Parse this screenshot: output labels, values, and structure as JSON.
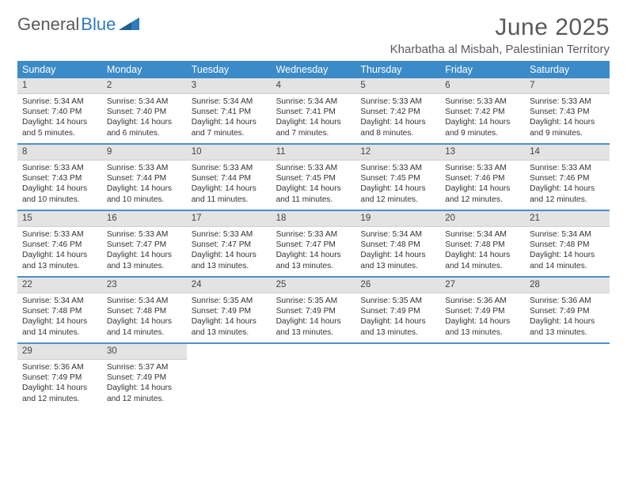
{
  "brand": {
    "part1": "General",
    "part2": "Blue"
  },
  "title": "June 2025",
  "location": "Kharbatha al Misbah, Palestinian Territory",
  "colors": {
    "header_bg": "#3b8bc9",
    "header_text": "#ffffff",
    "daynum_bg": "#e3e3e3",
    "separator": "#2f7bbf",
    "brand_blue": "#2f7bbf",
    "body_text": "#333333",
    "title_text": "#5a5a5a"
  },
  "typography": {
    "month_title_size": 30,
    "location_size": 15,
    "dow_size": 12.5,
    "daynum_size": 11.5,
    "body_size": 10.2
  },
  "layout": {
    "columns": 7,
    "weeks": 5
  },
  "days_of_week": [
    "Sunday",
    "Monday",
    "Tuesday",
    "Wednesday",
    "Thursday",
    "Friday",
    "Saturday"
  ],
  "days": [
    {
      "n": 1,
      "sunrise": "5:34 AM",
      "sunset": "7:40 PM",
      "daylight": "14 hours and 5 minutes."
    },
    {
      "n": 2,
      "sunrise": "5:34 AM",
      "sunset": "7:40 PM",
      "daylight": "14 hours and 6 minutes."
    },
    {
      "n": 3,
      "sunrise": "5:34 AM",
      "sunset": "7:41 PM",
      "daylight": "14 hours and 7 minutes."
    },
    {
      "n": 4,
      "sunrise": "5:34 AM",
      "sunset": "7:41 PM",
      "daylight": "14 hours and 7 minutes."
    },
    {
      "n": 5,
      "sunrise": "5:33 AM",
      "sunset": "7:42 PM",
      "daylight": "14 hours and 8 minutes."
    },
    {
      "n": 6,
      "sunrise": "5:33 AM",
      "sunset": "7:42 PM",
      "daylight": "14 hours and 9 minutes."
    },
    {
      "n": 7,
      "sunrise": "5:33 AM",
      "sunset": "7:43 PM",
      "daylight": "14 hours and 9 minutes."
    },
    {
      "n": 8,
      "sunrise": "5:33 AM",
      "sunset": "7:43 PM",
      "daylight": "14 hours and 10 minutes."
    },
    {
      "n": 9,
      "sunrise": "5:33 AM",
      "sunset": "7:44 PM",
      "daylight": "14 hours and 10 minutes."
    },
    {
      "n": 10,
      "sunrise": "5:33 AM",
      "sunset": "7:44 PM",
      "daylight": "14 hours and 11 minutes."
    },
    {
      "n": 11,
      "sunrise": "5:33 AM",
      "sunset": "7:45 PM",
      "daylight": "14 hours and 11 minutes."
    },
    {
      "n": 12,
      "sunrise": "5:33 AM",
      "sunset": "7:45 PM",
      "daylight": "14 hours and 12 minutes."
    },
    {
      "n": 13,
      "sunrise": "5:33 AM",
      "sunset": "7:46 PM",
      "daylight": "14 hours and 12 minutes."
    },
    {
      "n": 14,
      "sunrise": "5:33 AM",
      "sunset": "7:46 PM",
      "daylight": "14 hours and 12 minutes."
    },
    {
      "n": 15,
      "sunrise": "5:33 AM",
      "sunset": "7:46 PM",
      "daylight": "14 hours and 13 minutes."
    },
    {
      "n": 16,
      "sunrise": "5:33 AM",
      "sunset": "7:47 PM",
      "daylight": "14 hours and 13 minutes."
    },
    {
      "n": 17,
      "sunrise": "5:33 AM",
      "sunset": "7:47 PM",
      "daylight": "14 hours and 13 minutes."
    },
    {
      "n": 18,
      "sunrise": "5:33 AM",
      "sunset": "7:47 PM",
      "daylight": "14 hours and 13 minutes."
    },
    {
      "n": 19,
      "sunrise": "5:34 AM",
      "sunset": "7:48 PM",
      "daylight": "14 hours and 13 minutes."
    },
    {
      "n": 20,
      "sunrise": "5:34 AM",
      "sunset": "7:48 PM",
      "daylight": "14 hours and 14 minutes."
    },
    {
      "n": 21,
      "sunrise": "5:34 AM",
      "sunset": "7:48 PM",
      "daylight": "14 hours and 14 minutes."
    },
    {
      "n": 22,
      "sunrise": "5:34 AM",
      "sunset": "7:48 PM",
      "daylight": "14 hours and 14 minutes."
    },
    {
      "n": 23,
      "sunrise": "5:34 AM",
      "sunset": "7:48 PM",
      "daylight": "14 hours and 14 minutes."
    },
    {
      "n": 24,
      "sunrise": "5:35 AM",
      "sunset": "7:49 PM",
      "daylight": "14 hours and 13 minutes."
    },
    {
      "n": 25,
      "sunrise": "5:35 AM",
      "sunset": "7:49 PM",
      "daylight": "14 hours and 13 minutes."
    },
    {
      "n": 26,
      "sunrise": "5:35 AM",
      "sunset": "7:49 PM",
      "daylight": "14 hours and 13 minutes."
    },
    {
      "n": 27,
      "sunrise": "5:36 AM",
      "sunset": "7:49 PM",
      "daylight": "14 hours and 13 minutes."
    },
    {
      "n": 28,
      "sunrise": "5:36 AM",
      "sunset": "7:49 PM",
      "daylight": "14 hours and 13 minutes."
    },
    {
      "n": 29,
      "sunrise": "5:36 AM",
      "sunset": "7:49 PM",
      "daylight": "14 hours and 12 minutes."
    },
    {
      "n": 30,
      "sunrise": "5:37 AM",
      "sunset": "7:49 PM",
      "daylight": "14 hours and 12 minutes."
    }
  ],
  "labels": {
    "sunrise": "Sunrise:",
    "sunset": "Sunset:",
    "daylight": "Daylight:"
  }
}
